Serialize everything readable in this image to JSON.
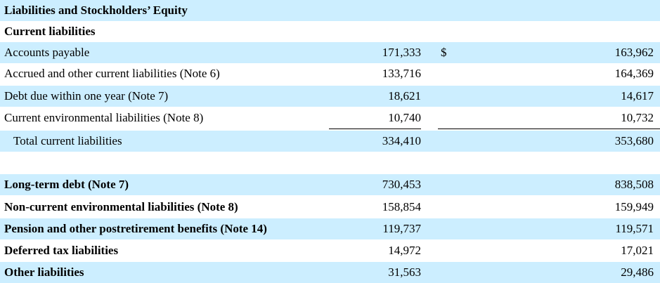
{
  "section_title": "Liabilities and Stockholders’ Equity",
  "subsection_title": "Current liabilities",
  "currency_symbol": "$",
  "current_rows": [
    {
      "label": "Accounts payable",
      "v1": "171,333",
      "v2": "163,962"
    },
    {
      "label": "Accrued and other current liabilities (Note 6)",
      "v1": "133,716",
      "v2": "164,369"
    },
    {
      "label": "Debt due within one year (Note 7)",
      "v1": "18,621",
      "v2": "14,617"
    },
    {
      "label": "Current environmental liabilities (Note 8)",
      "v1": "10,740",
      "v2": "10,732"
    }
  ],
  "total_current": {
    "label": "Total current liabilities",
    "v1": "334,410",
    "v2": "353,680"
  },
  "noncurrent_rows": [
    {
      "label": "Long-term debt (Note 7)",
      "v1": "730,453",
      "v2": "838,508"
    },
    {
      "label": "Non-current environmental liabilities (Note 8)",
      "v1": "158,854",
      "v2": "159,949"
    },
    {
      "label": "Pension and other postretirement benefits (Note 14)",
      "v1": "119,737",
      "v2": "119,571"
    },
    {
      "label": "Deferred tax liabilities",
      "v1": "14,972",
      "v2": "17,021"
    },
    {
      "label": "Other liabilities",
      "v1": "31,563",
      "v2": "29,486"
    }
  ],
  "colors": {
    "row_shade": "#cceeff",
    "text": "#000000"
  }
}
